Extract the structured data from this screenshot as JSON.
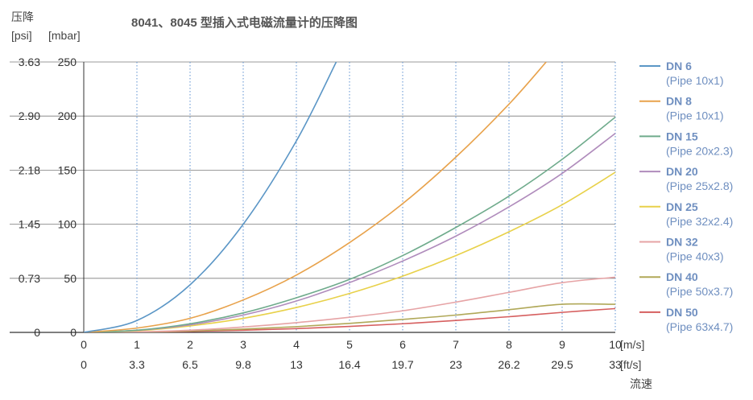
{
  "chart_data": {
    "type": "line",
    "title": "8041、8045 型插入式电磁流量计的压降图",
    "ylabel": "压降",
    "yunit_psi": "[psi]",
    "yunit_mbar": "[mbar]",
    "xunit_ms": "[m/s]",
    "xunit_fts": "[ft/s]",
    "xlabel": "流速",
    "xlim": [
      0,
      10
    ],
    "ylim": [
      0,
      250
    ],
    "x_ticks_ms": [
      "0",
      "1",
      "2",
      "3",
      "4",
      "5",
      "6",
      "7",
      "8",
      "9",
      "10"
    ],
    "x_ticks_fts": [
      "0",
      "3.3",
      "6.5",
      "9.8",
      "13",
      "16.4",
      "19.7",
      "23",
      "26.2",
      "29.5",
      "33"
    ],
    "y_ticks_mbar": [
      "0",
      "50",
      "100",
      "150",
      "200",
      "250"
    ],
    "y_ticks_psi": [
      "0",
      "0.73",
      "1.45",
      "2.18",
      "2.90",
      "3.63"
    ],
    "x_grid": "dotted",
    "y_grid": "solid",
    "legend_position": "right",
    "series": [
      {
        "name": "DN 6",
        "sub": "(Pipe 10x1)",
        "color": "#5b96c6",
        "x": [
          0,
          1,
          2,
          3,
          4,
          4.75
        ],
        "y": [
          0,
          11,
          44,
          100,
          177,
          250
        ]
      },
      {
        "name": "DN 8",
        "sub": "(Pipe 10x1)",
        "color": "#e8a24b",
        "x": [
          0,
          1,
          2,
          3,
          4,
          5,
          6,
          7,
          8,
          8.7
        ],
        "y": [
          0,
          4,
          13,
          30,
          53,
          83,
          119,
          162,
          211,
          250
        ]
      },
      {
        "name": "DN 15",
        "sub": "(Pipe 20x2.3)",
        "color": "#6fab8c",
        "x": [
          0,
          1,
          2,
          3,
          4,
          5,
          6,
          7,
          8,
          9,
          10
        ],
        "y": [
          0,
          2,
          8,
          18,
          32,
          49,
          71,
          97,
          126,
          160,
          199
        ]
      },
      {
        "name": "DN 20",
        "sub": "(Pipe 25x2.8)",
        "color": "#b08cbc",
        "x": [
          0,
          1,
          2,
          3,
          4,
          5,
          6,
          7,
          8,
          9,
          10
        ],
        "y": [
          0,
          1.9,
          7,
          16,
          29,
          46,
          66,
          89,
          116,
          147,
          184
        ]
      },
      {
        "name": "DN 25",
        "sub": "(Pipe 32x2.4)",
        "color": "#e8d14a",
        "x": [
          0,
          1,
          2,
          3,
          4,
          5,
          6,
          7,
          8,
          9,
          10
        ],
        "y": [
          0,
          1.5,
          6,
          13,
          23,
          36,
          52,
          71,
          93,
          118,
          148
        ]
      },
      {
        "name": "DN 32",
        "sub": "(Pipe 40x3)",
        "color": "#e6a3a5",
        "x": [
          0,
          1,
          2,
          3,
          4,
          5,
          6,
          7,
          8,
          9,
          10
        ],
        "y": [
          0,
          0.5,
          2,
          5,
          9,
          14,
          20,
          28,
          37,
          46,
          51
        ]
      },
      {
        "name": "DN 40",
        "sub": "(Pipe 50x3.7)",
        "color": "#b0a858",
        "x": [
          0,
          1,
          2,
          3,
          4,
          5,
          6,
          7,
          8,
          9,
          10
        ],
        "y": [
          0,
          0.3,
          1.3,
          3,
          5.3,
          8.3,
          12,
          16,
          21,
          26,
          26
        ]
      },
      {
        "name": "DN 50",
        "sub": "(Pipe 63x4.7)",
        "color": "#d65f5f",
        "x": [
          0,
          1,
          2,
          3,
          4,
          5,
          6,
          7,
          8,
          9,
          10
        ],
        "y": [
          0,
          0.2,
          0.9,
          2,
          3.5,
          5.5,
          8,
          11,
          14.5,
          18.5,
          22
        ]
      }
    ]
  }
}
